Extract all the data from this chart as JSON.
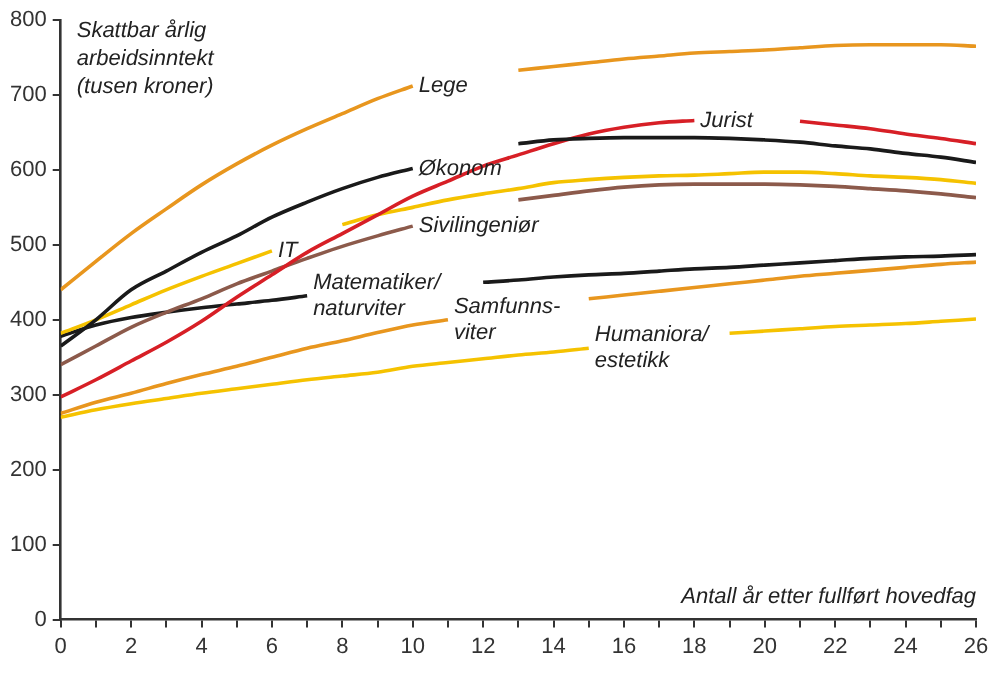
{
  "chart_data": {
    "type": "line",
    "xlabel": "Antall år etter fullført hovedfag",
    "ylabel": "Skattbar årlig arbeidsinntekt (tusen kroner)",
    "x": [
      0,
      1,
      2,
      3,
      4,
      5,
      6,
      7,
      8,
      9,
      10,
      11,
      12,
      13,
      14,
      15,
      16,
      17,
      18,
      19,
      20,
      21,
      22,
      23,
      24,
      25,
      26
    ],
    "series": [
      {
        "name": "Lege",
        "color": "#e8961e",
        "values": [
          440,
          478,
          515,
          548,
          580,
          608,
          633,
          655,
          675,
          695,
          712,
          null,
          null,
          733,
          738,
          743,
          748,
          752,
          756,
          758,
          760,
          763,
          766,
          767,
          767,
          767,
          765
        ]
      },
      {
        "name": "Økonom",
        "color": "#1a1a1a",
        "values": [
          365,
          400,
          440,
          465,
          490,
          512,
          537,
          557,
          575,
          590,
          602,
          null,
          null,
          635,
          640,
          642,
          643,
          643,
          643,
          642,
          640,
          637,
          632,
          628,
          622,
          617,
          610
        ]
      },
      {
        "name": "Jurist",
        "color": "#d71f26",
        "values": [
          297,
          320,
          345,
          370,
          398,
          430,
          460,
          490,
          515,
          540,
          565,
          585,
          605,
          620,
          635,
          648,
          657,
          663,
          666,
          null,
          null,
          665,
          660,
          655,
          648,
          642,
          635
        ]
      },
      {
        "name": "IT",
        "color": "#f5c200",
        "values": [
          382,
          400,
          420,
          440,
          458,
          475,
          492,
          null,
          527,
          540,
          550,
          560,
          568,
          575,
          583,
          587,
          590,
          592,
          593,
          595,
          597,
          597,
          595,
          592,
          590,
          587,
          582
        ]
      },
      {
        "name": "Sivilingeniør",
        "color": "#8c5a4b",
        "values": [
          340,
          365,
          390,
          410,
          428,
          448,
          465,
          482,
          498,
          512,
          525,
          null,
          null,
          560,
          566,
          572,
          577,
          580,
          581,
          581,
          581,
          580,
          578,
          575,
          572,
          568,
          563
        ]
      },
      {
        "name": "Matematiker/ naturviter",
        "color": "#1a1a1a",
        "values": [
          378,
          393,
          403,
          410,
          416,
          421,
          426,
          432,
          null,
          null,
          null,
          null,
          450,
          453,
          457,
          460,
          462,
          465,
          468,
          470,
          473,
          476,
          479,
          482,
          484,
          485,
          487
        ]
      },
      {
        "name": "Samfunns- viter",
        "color": "#e8961e",
        "values": [
          275,
          290,
          302,
          315,
          327,
          338,
          350,
          362,
          372,
          383,
          393,
          400,
          null,
          null,
          null,
          428,
          433,
          438,
          443,
          448,
          453,
          458,
          462,
          466,
          470,
          474,
          477
        ]
      },
      {
        "name": "Humaniora/ estetikk",
        "color": "#f5c200",
        "values": [
          270,
          280,
          288,
          295,
          302,
          308,
          314,
          320,
          325,
          330,
          338,
          343,
          348,
          353,
          357,
          362,
          null,
          null,
          null,
          382,
          385,
          388,
          391,
          393,
          395,
          398,
          401
        ]
      }
    ],
    "xlim": [
      0,
      26
    ],
    "xticks": [
      0,
      {
        "value": 1,
        "label": null
      },
      2,
      {
        "value": 3,
        "label": null
      },
      4,
      {
        "value": 5,
        "label": null
      },
      6,
      {
        "value": 7,
        "label": null
      },
      8,
      {
        "value": 9,
        "label": null
      },
      10,
      {
        "value": 11,
        "label": null
      },
      12,
      {
        "value": 13,
        "label": null
      },
      14,
      {
        "value": 15,
        "label": null
      },
      16,
      {
        "value": 17,
        "label": null
      },
      18,
      {
        "value": 19,
        "label": null
      },
      20,
      {
        "value": 21,
        "label": null
      },
      22,
      {
        "value": 23,
        "label": null
      },
      24,
      {
        "value": 25,
        "label": null
      },
      26
    ],
    "ylim": [
      0,
      800
    ],
    "yticks": [
      0,
      100,
      200,
      300,
      400,
      500,
      600,
      700,
      800
    ],
    "grid": false,
    "legend": false,
    "marker": "none",
    "line_style": "solid"
  }
}
